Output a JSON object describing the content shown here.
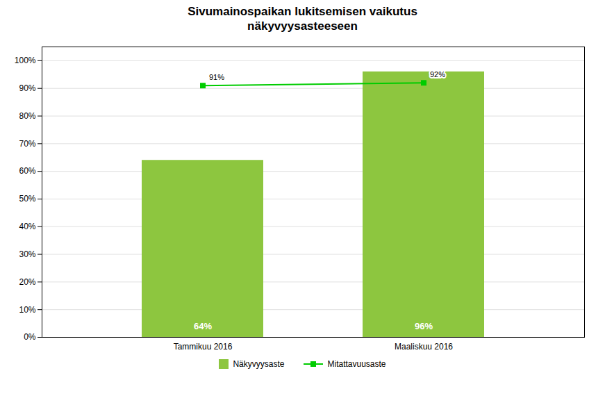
{
  "chart_data": {
    "type": "bar",
    "title": "Sivumainospaikan lukitsemisen vaikutus\nnäkyvyysasteeseen",
    "categories": [
      "Tammikuu 2016",
      "Maaliskuu 2016"
    ],
    "series": [
      {
        "name": "Näkyvyysaste",
        "type": "bar",
        "color": "#8dc63f",
        "values": [
          0.64,
          0.96
        ],
        "value_labels": [
          "64%",
          "96%"
        ]
      },
      {
        "name": "Mitattavuusaste",
        "type": "line",
        "color": "#00cc00",
        "marker": "square",
        "values": [
          0.91,
          0.92
        ],
        "value_labels": [
          "91%",
          "92%"
        ]
      }
    ],
    "ylim": [
      0,
      1.05
    ],
    "yticks": [
      {
        "value": 0,
        "label": "0%"
      },
      {
        "value": 0.1,
        "label": "10%"
      },
      {
        "value": 0.2,
        "label": "20%"
      },
      {
        "value": 0.3,
        "label": "30%"
      },
      {
        "value": 0.4,
        "label": "40%"
      },
      {
        "value": 0.5,
        "label": "50%"
      },
      {
        "value": 0.6,
        "label": "60%"
      },
      {
        "value": 0.7,
        "label": "70%"
      },
      {
        "value": 0.8,
        "label": "80%"
      },
      {
        "value": 0.9,
        "label": "90%"
      },
      {
        "value": 1.0,
        "label": "100%"
      }
    ],
    "grid": true,
    "legend": "bottom",
    "data_labels": true
  }
}
